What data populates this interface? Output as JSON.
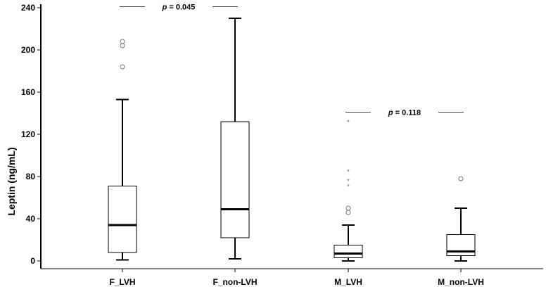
{
  "chart_data": {
    "type": "box",
    "title": "",
    "xlabel": "",
    "ylabel": "Leptin (ng/mL)",
    "ylim": [
      0,
      240
    ],
    "yticks": [
      0,
      40,
      80,
      120,
      160,
      200,
      240
    ],
    "grid": false,
    "categories": [
      "F_LVH",
      "F_non-LVH",
      "M_LVH",
      "M_non-LVH"
    ],
    "boxes": [
      {
        "label": "F_LVH",
        "whisker_low": 1,
        "q1": 8,
        "median": 34,
        "q3": 71,
        "whisker_high": 153,
        "outliers_circle": [
          184,
          204,
          208
        ],
        "outliers_star": []
      },
      {
        "label": "F_non-LVH",
        "whisker_low": 2,
        "q1": 22,
        "median": 49,
        "q3": 132,
        "whisker_high": 230,
        "outliers_circle": [],
        "outliers_star": []
      },
      {
        "label": "M_LVH",
        "whisker_low": 0,
        "q1": 3,
        "median": 7,
        "q3": 15,
        "whisker_high": 34,
        "outliers_circle": [
          46,
          50
        ],
        "outliers_star": [
          71,
          76,
          85,
          132
        ]
      },
      {
        "label": "M_non-LVH",
        "whisker_low": 0,
        "q1": 5,
        "median": 9,
        "q3": 25,
        "whisker_high": 50,
        "outliers_circle": [
          78
        ],
        "outliers_star": []
      }
    ],
    "annotations": [
      {
        "text": "p = 0.045",
        "p_label": "p",
        "p_value": "= 0.045",
        "between": [
          "F_LVH",
          "F_non-LVH"
        ],
        "y": 241
      },
      {
        "text": "p = 0.118",
        "p_label": "p",
        "p_value": "= 0.118",
        "between": [
          "M_LVH",
          "M_non-LVH"
        ],
        "y": 141
      }
    ]
  }
}
